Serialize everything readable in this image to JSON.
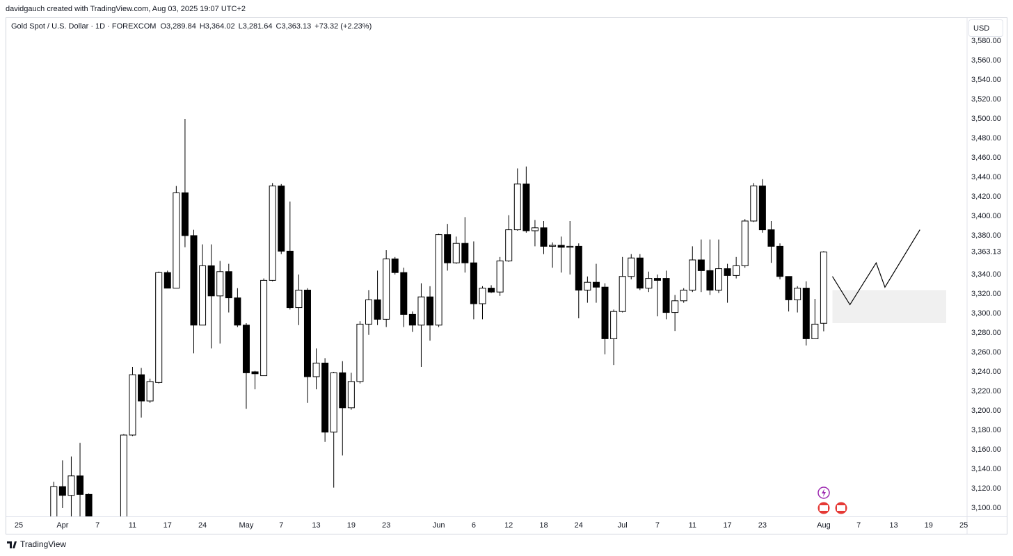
{
  "credit": "davidgauch created with TradingView.com, Aug 03, 2025 19:07 UTC+2",
  "brand": "TradingView",
  "currency": "USD",
  "chart_data": {
    "type": "candlestick",
    "header": {
      "symbol": "Gold Spot / U.S. Dollar · 1D · FOREXCOM",
      "open": "O3,289.84",
      "high": "H3,364.02",
      "low": "L3,281.64",
      "close": "C3,363.13",
      "change": "+73.32 (+2.23%)"
    },
    "categories": [
      "25",
      null,
      null,
      null,
      null,
      "Apr",
      null,
      null,
      null,
      "7",
      null,
      null,
      null,
      "11",
      null,
      null,
      null,
      "17",
      null,
      null,
      null,
      "24",
      null,
      null,
      null,
      null,
      "May",
      null,
      null,
      null,
      "7",
      null,
      null,
      null,
      "13",
      null,
      null,
      null,
      "19",
      null,
      null,
      null,
      "23",
      null,
      null,
      null,
      null,
      null,
      "Jun",
      null,
      null,
      null,
      "6",
      null,
      null,
      null,
      "12",
      null,
      null,
      null,
      "18",
      null,
      null,
      null,
      "24",
      null,
      null,
      null,
      null,
      "Jul",
      null,
      null,
      null,
      "7",
      null,
      null,
      null,
      "11",
      null,
      null,
      null,
      "17",
      null,
      null,
      null,
      "23",
      null,
      null,
      null,
      null,
      null,
      null,
      "Aug",
      null,
      null,
      null,
      "7",
      null,
      null,
      null,
      "13",
      null,
      null,
      null,
      "19",
      null,
      null,
      null,
      "25"
    ],
    "open": [
      null,
      null,
      null,
      null,
      3088,
      3122,
      3113,
      3133,
      3114,
      null,
      null,
      null,
      3080,
      3175,
      3237,
      3210,
      3229,
      3342,
      3326,
      3424,
      3380,
      3288,
      3349,
      3318,
      3343,
      3316,
      3288,
      3240,
      3236,
      3334,
      3431,
      3364,
      3306,
      3324,
      3235,
      3249,
      3178,
      3239,
      3203,
      3230,
      3289,
      3314,
      3294,
      3356,
      3342,
      3299,
      3288,
      3317,
      3288,
      3381,
      3352,
      3372,
      3352,
      3310,
      3326,
      3322,
      3354,
      3386,
      3433,
      3385,
      3388,
      3369,
      3370,
      3368,
      3369,
      3324,
      3332,
      3327,
      3274,
      3302,
      3338,
      3357,
      3326,
      3336,
      3336,
      3301,
      3313,
      3324,
      3355,
      3344,
      3324,
      3346,
      3339,
      3349,
      3395,
      3431,
      3386,
      3369,
      3338,
      3314,
      3326,
      3274,
      3289.84,
      null,
      null,
      null,
      null,
      null,
      null,
      null,
      null,
      null,
      null,
      null,
      null,
      null,
      null,
      null,
      null
    ],
    "high": [
      null,
      null,
      null,
      null,
      3127,
      3149,
      3153,
      3167,
      3115,
      null,
      null,
      null,
      3176,
      3245,
      3244,
      3233,
      3343,
      3344,
      3431,
      3500,
      3386,
      3371,
      3371,
      3354,
      3351,
      3326,
      3290,
      3241,
      3336,
      3434,
      3433,
      3415,
      3340,
      3326,
      3264,
      3254,
      3240,
      3251,
      3239,
      3292,
      3324,
      3344,
      3365,
      3358,
      3347,
      3302,
      3331,
      3328,
      3382,
      3392,
      3379,
      3399,
      3374,
      3328,
      3329,
      3358,
      3401,
      3449,
      3451,
      3396,
      3395,
      3373,
      3379,
      3395,
      3372,
      3338,
      3351,
      3331,
      3304,
      3358,
      3361,
      3361,
      3343,
      3340,
      3344,
      3319,
      3326,
      3369,
      3376,
      3376,
      3376,
      3351,
      3358,
      3397,
      3434,
      3438,
      3395,
      3372,
      3338,
      3328,
      3333,
      3315,
      3364.02,
      null,
      null,
      null,
      null,
      null,
      null,
      null,
      null,
      null,
      null,
      null,
      null,
      null,
      null,
      null,
      null
    ],
    "low": [
      null,
      null,
      null,
      null,
      3080,
      3100,
      3091,
      3090,
      3070,
      null,
      null,
      null,
      3070,
      3174,
      3193,
      3208,
      3228,
      3326,
      3326,
      3368,
      3259,
      3288,
      3264,
      3269,
      3301,
      3286,
      3202,
      3222,
      3236,
      3333,
      3361,
      3304,
      3288,
      3208,
      3222,
      3168,
      3121,
      3154,
      3201,
      3228,
      3278,
      3288,
      3286,
      3340,
      3286,
      3281,
      3245,
      3272,
      3286,
      3344,
      3351,
      3342,
      3294,
      3294,
      3321,
      3318,
      3353,
      3385,
      3383,
      3369,
      3361,
      3347,
      3342,
      3340,
      3295,
      3311,
      3311,
      3258,
      3247,
      3301,
      3335,
      3324,
      3322,
      3297,
      3294,
      3282,
      3311,
      3322,
      3322,
      3319,
      3321,
      3311,
      3336,
      3347,
      3394,
      3383,
      3352,
      3335,
      3302,
      3301,
      3267,
      3274,
      3281.64,
      null,
      null,
      null,
      null,
      null,
      null,
      null,
      null,
      null,
      null,
      null,
      null,
      null,
      null,
      null,
      null
    ],
    "close": [
      null,
      null,
      null,
      null,
      3122,
      3113,
      3133,
      3114,
      3085,
      null,
      null,
      null,
      3175,
      3237,
      3210,
      3230,
      3342,
      3326,
      3424,
      3380,
      3288,
      3349,
      3318,
      3343,
      3316,
      3288,
      3239,
      3238,
      3334,
      3431,
      3364,
      3306,
      3324,
      3235,
      3249,
      3178,
      3239,
      3203,
      3230,
      3289,
      3314,
      3294,
      3356,
      3342,
      3299,
      3288,
      3317,
      3288,
      3381,
      3352,
      3372,
      3352,
      3310,
      3326,
      3322,
      3354,
      3386,
      3433,
      3385,
      3388,
      3369,
      3370,
      3368,
      3369,
      3324,
      3332,
      3327,
      3274,
      3302,
      3338,
      3357,
      3326,
      3336,
      3334,
      3301,
      3313,
      3324,
      3355,
      3344,
      3324,
      3346,
      3339,
      3349,
      3395,
      3431,
      3386,
      3369,
      3338,
      3314,
      3326,
      3274,
      3289,
      3363.13,
      null,
      null,
      null,
      null,
      null,
      null,
      null,
      null,
      null,
      null,
      null,
      null,
      null,
      null,
      null,
      null
    ],
    "up_color": "#ffffff",
    "down_color": "#000000",
    "border_color": "#000000",
    "ylim": [
      3091.4,
      3604.3
    ],
    "yticks": [
      {
        "value": 3100,
        "label": "3,100.00"
      },
      {
        "value": 3120,
        "label": "3,120.00"
      },
      {
        "value": 3140,
        "label": "3,140.00"
      },
      {
        "value": 3160,
        "label": "3,160.00"
      },
      {
        "value": 3180,
        "label": "3,180.00"
      },
      {
        "value": 3200,
        "label": "3,200.00"
      },
      {
        "value": 3220,
        "label": "3,220.00"
      },
      {
        "value": 3240,
        "label": "3,240.00"
      },
      {
        "value": 3260,
        "label": "3,260.00"
      },
      {
        "value": 3280,
        "label": "3,280.00"
      },
      {
        "value": 3300,
        "label": "3,300.00"
      },
      {
        "value": 3320,
        "label": "3,320.00"
      },
      {
        "value": 3340,
        "label": "3,340.00"
      },
      {
        "value": 3380,
        "label": "3,380.00"
      },
      {
        "value": 3400,
        "label": "3,400.00"
      },
      {
        "value": 3420,
        "label": "3,420.00"
      },
      {
        "value": 3440,
        "label": "3,440.00"
      },
      {
        "value": 3460,
        "label": "3,460.00"
      },
      {
        "value": 3480,
        "label": "3,480.00"
      },
      {
        "value": 3500,
        "label": "3,500.00"
      },
      {
        "value": 3520,
        "label": "3,520.00"
      },
      {
        "value": 3540,
        "label": "3,540.00"
      },
      {
        "value": 3560,
        "label": "3,560.00"
      },
      {
        "value": 3580,
        "label": "3,580.00"
      }
    ],
    "grid": false,
    "last_price": {
      "value": 3363.13,
      "label": "3,363.13"
    },
    "zone": {
      "x": [
        93,
        106
      ],
      "values": [
        3290,
        3324
      ],
      "color": "#f0f0f0"
    },
    "projection": {
      "x": [
        93,
        95,
        98,
        99,
        103
      ],
      "values": [
        3338,
        3309,
        3352,
        3327,
        3386
      ],
      "color": "#000000"
    }
  }
}
